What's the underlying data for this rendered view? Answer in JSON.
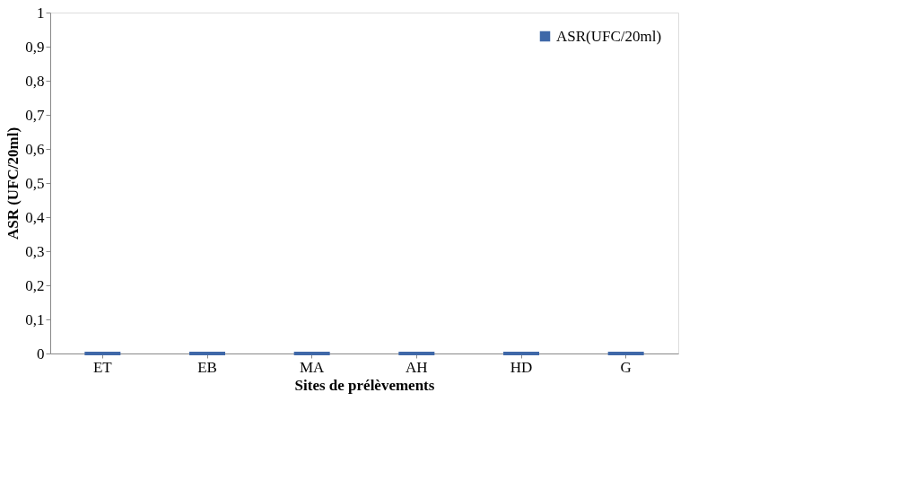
{
  "chart_data": {
    "type": "bar",
    "xlabel": "Sites de prélèvements",
    "ylabel": "ASR (UFC/20ml)",
    "categories": [
      "ET",
      "EB",
      "MA",
      "AH",
      "HD",
      "G"
    ],
    "series": [
      {
        "name": "ASR(UFC/20ml)",
        "color": "#3f68a8",
        "values": [
          0,
          0,
          0,
          0,
          0,
          0
        ]
      }
    ],
    "ylim": [
      0,
      1
    ],
    "yticks": [
      0,
      {
        "value": 0.1,
        "label": "0,1"
      },
      {
        "value": 0.2,
        "label": "0,2"
      },
      {
        "value": 0.3,
        "label": "0,3"
      },
      {
        "value": 0.4,
        "label": "0,4"
      },
      {
        "value": 0.5,
        "label": "0,5"
      },
      {
        "value": 0.6,
        "label": "0,6"
      },
      {
        "value": 0.7,
        "label": "0,7"
      },
      {
        "value": 0.8,
        "label": "0,8"
      },
      {
        "value": 0.9,
        "label": "0,9"
      },
      1
    ],
    "grid": false,
    "legend": "top right"
  }
}
